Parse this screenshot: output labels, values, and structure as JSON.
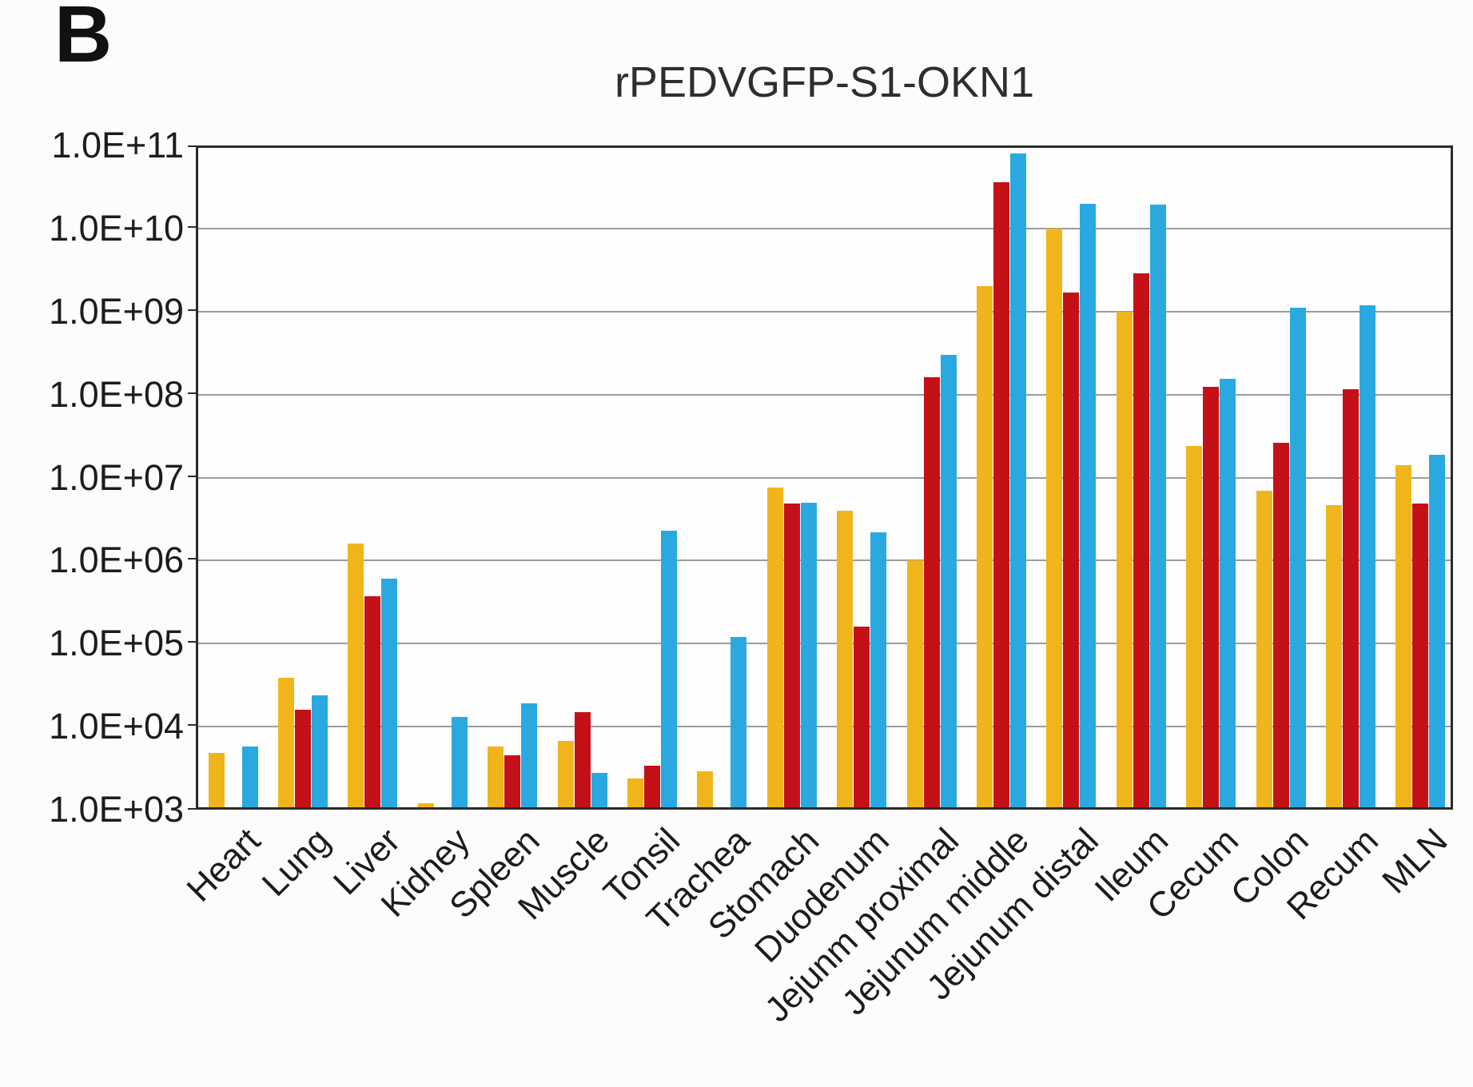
{
  "panel_label": "B",
  "colors": {
    "background": "#fcfcfc",
    "plot_background": "#fefefe",
    "axis_border": "#2b2b2b",
    "gridline": "#9b9b9b",
    "text": "#1c1c1c"
  },
  "chart_data": {
    "type": "bar",
    "title": "rPEDVGFP-S1-OKN1",
    "xlabel": "",
    "ylabel": "",
    "y_scale": "log",
    "ylim": [
      1000.0,
      100000000000.0
    ],
    "grid": true,
    "legend_position": "none",
    "y_tick_labels": [
      "1.0E+11",
      "1.0E+10",
      "1.0E+09",
      "1.0E+08",
      "1.0E+07",
      "1.0E+06",
      "1.0E+05",
      "1.0E+04",
      "1.0E+03"
    ],
    "y_tick_values": [
      100000000000.0,
      10000000000.0,
      1000000000.0,
      100000000.0,
      10000000.0,
      1000000.0,
      100000.0,
      10000.0,
      1000.0
    ],
    "categories": [
      "Heart",
      "Lung",
      "Liver",
      "Kidney",
      "Spleen",
      "Muscle",
      "Tonsil",
      "Trachea",
      "Stomach",
      "Duodenum",
      "Jejunm proximal",
      "Jejunum middle",
      "Jejunum distal",
      "Ileum",
      "Cecum",
      "Colon",
      "Recum",
      "MLN"
    ],
    "series": [
      {
        "name": "yellow-bar-series",
        "color": "#F1B51C",
        "values": [
          4800.0,
          39000.0,
          1600000.0,
          1200.0,
          5700.0,
          6800.0,
          2400.0,
          2900.0,
          7500000.0,
          4000000.0,
          1000000.0,
          2000000000.0,
          10000000000.0,
          1000000000.0,
          24000000.0,
          7000000.0,
          4700000.0,
          14000000.0
        ]
      },
      {
        "name": "red-bar-series",
        "color": "#C41118",
        "values": [
          null,
          16000.0,
          370000.0,
          null,
          4500.0,
          15000.0,
          3400.0,
          null,
          4900000.0,
          160000.0,
          160000000.0,
          36000000000.0,
          1700000000.0,
          2900000000.0,
          125000000.0,
          26000000.0,
          115000000.0,
          4900000.0
        ]
      },
      {
        "name": "blue-bar-series",
        "color": "#2AA9E0",
        "values": [
          5800.0,
          24000.0,
          600000.0,
          13000.0,
          19000.0,
          2800.0,
          2300000.0,
          120000.0,
          5000000.0,
          2200000.0,
          300000000.0,
          80000000000.0,
          20000000000.0,
          19500000000.0,
          155000000.0,
          1100000000.0,
          1200000000.0,
          19000000.0
        ]
      }
    ]
  }
}
